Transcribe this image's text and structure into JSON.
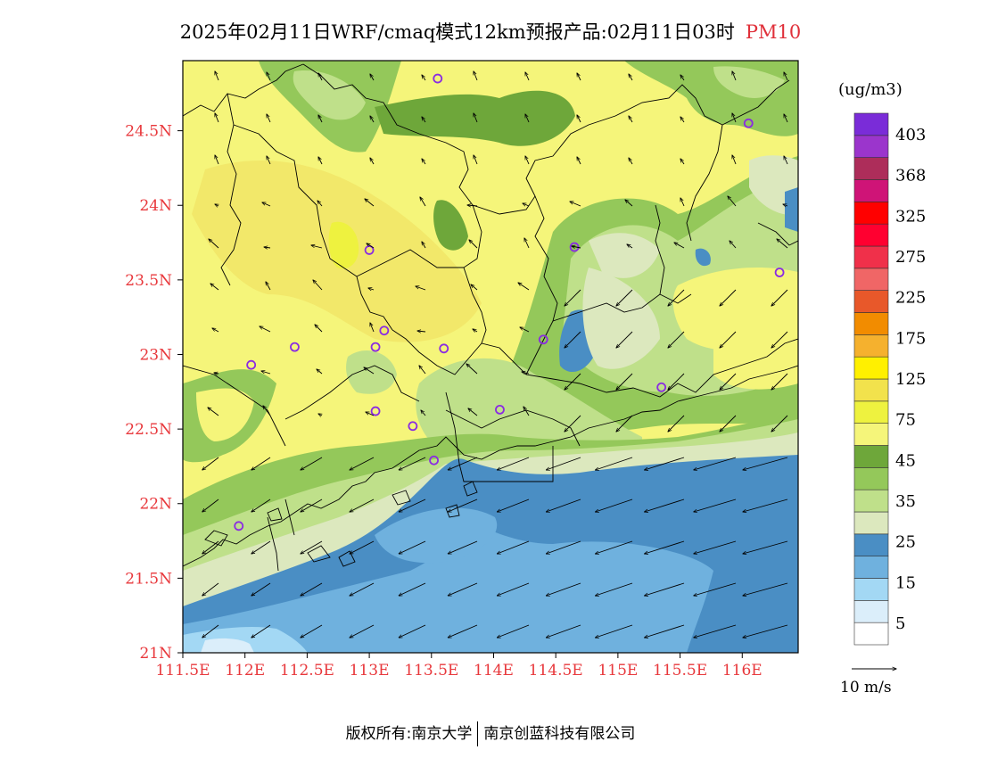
{
  "title": {
    "main": "2025年02月11日WRF/cmaq模式12km预报产品:02月11日03时",
    "pollutant": "PM10",
    "pollutant_color": "#e0303a"
  },
  "axes": {
    "lat_ticks": [
      "24.5N",
      "24N",
      "23.5N",
      "23N",
      "22.5N",
      "22N",
      "21.5N",
      "21N"
    ],
    "lat_values": [
      24.5,
      24.0,
      23.5,
      23.0,
      22.5,
      22.0,
      21.5,
      21.0
    ],
    "lon_ticks": [
      "111.5E",
      "112E",
      "112.5E",
      "113E",
      "113.5E",
      "114E",
      "114.5E",
      "115E",
      "115.5E",
      "116E"
    ],
    "lon_values": [
      111.5,
      112.0,
      112.5,
      113.0,
      113.5,
      114.0,
      114.5,
      115.0,
      115.5,
      116.0
    ],
    "lon_range": [
      111.5,
      116.45
    ],
    "lat_range": [
      21.0,
      24.97
    ],
    "tick_color": "#e8383c"
  },
  "legend": {
    "unit": "(ug/m3)",
    "labels": [
      "403",
      "368",
      "325",
      "275",
      "225",
      "175",
      "125",
      "75",
      "45",
      "35",
      "25",
      "15",
      "5"
    ],
    "colors": [
      "#ffffff",
      "#dbeefa",
      "#a3d8f4",
      "#6fb1de",
      "#4a8ec4",
      "#dce8be",
      "#bfe08a",
      "#94c85a",
      "#6ea73a",
      "#f5f57a",
      "#eef23f",
      "#f2e24c",
      "#fff000",
      "#f5b12e",
      "#f28c00",
      "#e8582a",
      "#f06666",
      "#f0304a",
      "#ff0030",
      "#ff0000",
      "#cf1477",
      "#ad2d5a",
      "#9b35cc",
      "#7a2cd8"
    ]
  },
  "wind": {
    "reference_label": "10 m/s"
  },
  "stations": [
    {
      "lon": 113.55,
      "lat": 24.85
    },
    {
      "lon": 116.05,
      "lat": 24.55
    },
    {
      "lon": 113.0,
      "lat": 23.7
    },
    {
      "lon": 114.65,
      "lat": 23.72
    },
    {
      "lon": 116.3,
      "lat": 23.55
    },
    {
      "lon": 113.12,
      "lat": 23.16
    },
    {
      "lon": 113.05,
      "lat": 23.05
    },
    {
      "lon": 112.4,
      "lat": 23.05
    },
    {
      "lon": 113.6,
      "lat": 23.04
    },
    {
      "lon": 114.4,
      "lat": 23.1
    },
    {
      "lon": 112.05,
      "lat": 22.93
    },
    {
      "lon": 115.35,
      "lat": 22.78
    },
    {
      "lon": 113.05,
      "lat": 22.62
    },
    {
      "lon": 114.05,
      "lat": 22.63
    },
    {
      "lon": 113.35,
      "lat": 22.52
    },
    {
      "lon": 113.52,
      "lat": 22.29
    },
    {
      "lon": 111.95,
      "lat": 21.85
    }
  ],
  "footer": {
    "left": "版权所有:南京大学",
    "right": "南京创蓝科技有限公司"
  }
}
